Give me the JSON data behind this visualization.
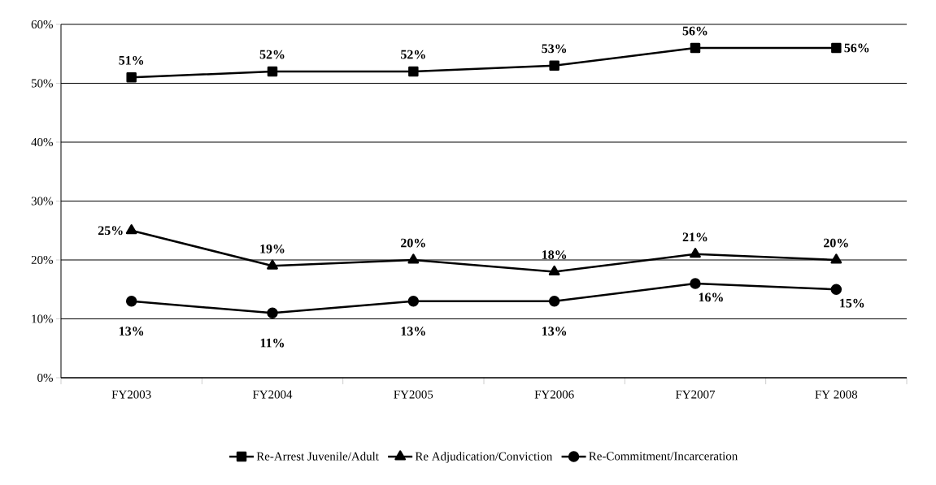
{
  "chart_data": {
    "type": "line",
    "categories": [
      "FY2003",
      "FY2004",
      "FY2005",
      "FY2006",
      "FY2007",
      "FY 2008"
    ],
    "series": [
      {
        "name": "Re-Arrest Juvenile/Adult",
        "color": "#000000",
        "marker": "square",
        "values": [
          51,
          52,
          52,
          53,
          56,
          56
        ],
        "value_labels": [
          "51%",
          "52%",
          "52%",
          "53%",
          "56%",
          "56%"
        ]
      },
      {
        "name": "Re Adjudication/Conviction",
        "color": "#000000",
        "marker": "triangle",
        "values": [
          25,
          19,
          20,
          18,
          21,
          20
        ],
        "value_labels": [
          "25%",
          "19%",
          "20%",
          "18%",
          "21%",
          "20%"
        ]
      },
      {
        "name": "Re-Commitment/Incarceration",
        "color": "#000000",
        "marker": "circle",
        "values": [
          13,
          11,
          13,
          13,
          16,
          15
        ],
        "value_labels": [
          "13%",
          "11%",
          "13%",
          "13%",
          "16%",
          "15%"
        ]
      }
    ],
    "ylim": [
      0,
      60
    ],
    "yticks": [
      {
        "value": 0,
        "label": "0%"
      },
      {
        "value": 10,
        "label": "10%"
      },
      {
        "value": 20,
        "label": "20%"
      },
      {
        "value": 30,
        "label": "30%"
      },
      {
        "value": 40,
        "label": "40%"
      },
      {
        "value": 50,
        "label": "50%"
      },
      {
        "value": 60,
        "label": "60%"
      }
    ],
    "grid": "y",
    "legend": "bottom",
    "line_style": "solid"
  }
}
